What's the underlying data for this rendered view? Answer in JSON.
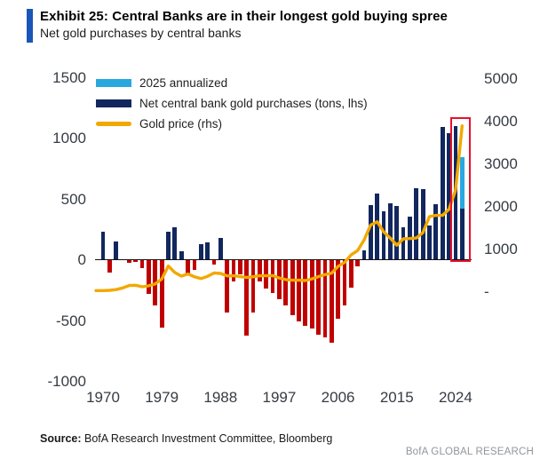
{
  "header": {
    "title": "Exhibit 25: Central Banks are in their longest gold buying spree",
    "subtitle": "Net gold purchases by central banks"
  },
  "legend": {
    "items": [
      {
        "label": "2025 annualized",
        "swatch": "cyan"
      },
      {
        "label": "Net central bank gold purchases (tons, lhs)",
        "swatch": "navy"
      },
      {
        "label": "Gold price (rhs)",
        "swatch": "gold"
      }
    ]
  },
  "footer": {
    "source_label": "Source:",
    "source_text": " BofA Research Investment Committee, Bloomberg",
    "brand": "BofA GLOBAL RESEARCH"
  },
  "colors": {
    "navy_bar": "#12275d",
    "cyan_bar": "#29a8e0",
    "red_bar": "#c00000",
    "gold_line": "#f2a800",
    "highlight_box": "#e8112d",
    "title_stripe": "#1a56b8",
    "tick_text": "#363c44"
  },
  "chart_data": {
    "type": "bar+line",
    "title": "Net gold purchases by central banks",
    "left_axis": {
      "label": "tons (lhs)",
      "ticks": [
        1500,
        1000,
        500,
        0,
        -500,
        -1000
      ],
      "range": [
        -1100,
        1600
      ]
    },
    "right_axis": {
      "label": "gold price (rhs)",
      "ticks": [
        {
          "label": "5000",
          "value": 5000
        },
        {
          "label": "4000",
          "value": 4000
        },
        {
          "label": "3000",
          "value": 3000
        },
        {
          "label": "2000",
          "value": 2000
        },
        {
          "label": "1000",
          "value": 1000
        },
        {
          "label": "-",
          "value": 0
        }
      ],
      "range": [
        0,
        5200
      ]
    },
    "x_ticks": [
      1970,
      1979,
      1988,
      1997,
      2006,
      2015,
      2024
    ],
    "bars": {
      "series_name": "Net central bank gold purchases (tons, lhs)",
      "years": [
        1970,
        1971,
        1972,
        1973,
        1974,
        1975,
        1976,
        1977,
        1978,
        1979,
        1980,
        1981,
        1982,
        1983,
        1984,
        1985,
        1986,
        1987,
        1988,
        1989,
        1990,
        1991,
        1992,
        1993,
        1994,
        1995,
        1996,
        1997,
        1998,
        1999,
        2000,
        2001,
        2002,
        2003,
        2004,
        2005,
        2006,
        2007,
        2008,
        2009,
        2010,
        2011,
        2012,
        2013,
        2014,
        2015,
        2016,
        2017,
        2018,
        2019,
        2020,
        2021,
        2022,
        2023,
        2024
      ],
      "values": [
        235,
        -100,
        150,
        0,
        -20,
        -15,
        -60,
        -275,
        -370,
        -555,
        230,
        272,
        76,
        -110,
        -80,
        132,
        145,
        -35,
        180,
        -430,
        -175,
        -115,
        -620,
        -430,
        -175,
        -230,
        -268,
        -317,
        -366,
        -452,
        -498,
        -537,
        -557,
        -611,
        -635,
        -679,
        -477,
        -367,
        -221,
        -48,
        78,
        450,
        545,
        405,
        465,
        442,
        270,
        355,
        593,
        581,
        287,
        463,
        1095,
        1045,
        1105
      ]
    },
    "bar_2025": {
      "year": 2025,
      "actual": 425,
      "annualized_total": 845,
      "note": "2025 annualized"
    },
    "gold_price": {
      "series_name": "Gold price (rhs)",
      "years": [
        1970,
        1971,
        1972,
        1973,
        1974,
        1975,
        1976,
        1977,
        1978,
        1979,
        1980,
        1981,
        1982,
        1983,
        1984,
        1985,
        1986,
        1987,
        1988,
        1989,
        1990,
        1991,
        1992,
        1993,
        1994,
        1995,
        1996,
        1997,
        1998,
        1999,
        2000,
        2001,
        2002,
        2003,
        2004,
        2005,
        2006,
        2007,
        2008,
        2009,
        2010,
        2011,
        2012,
        2013,
        2014,
        2015,
        2016,
        2017,
        2018,
        2019,
        2020,
        2021,
        2022,
        2023,
        2024,
        2025
      ],
      "values": [
        36,
        41,
        58,
        97,
        154,
        160,
        125,
        148,
        193,
        306,
        612,
        460,
        376,
        424,
        360,
        317,
        368,
        447,
        437,
        381,
        383,
        362,
        344,
        360,
        384,
        384,
        388,
        331,
        294,
        279,
        279,
        271,
        310,
        363,
        410,
        444,
        603,
        695,
        872,
        972,
        1225,
        1572,
        1650,
        1411,
        1266,
        1100,
        1251,
        1257,
        1269,
        1393,
        1770,
        1799,
        1800,
        1941,
        2390,
        3900
      ]
    },
    "highlight_years": [
      2024,
      2025
    ],
    "grid": false,
    "legend_position": "top-left"
  }
}
